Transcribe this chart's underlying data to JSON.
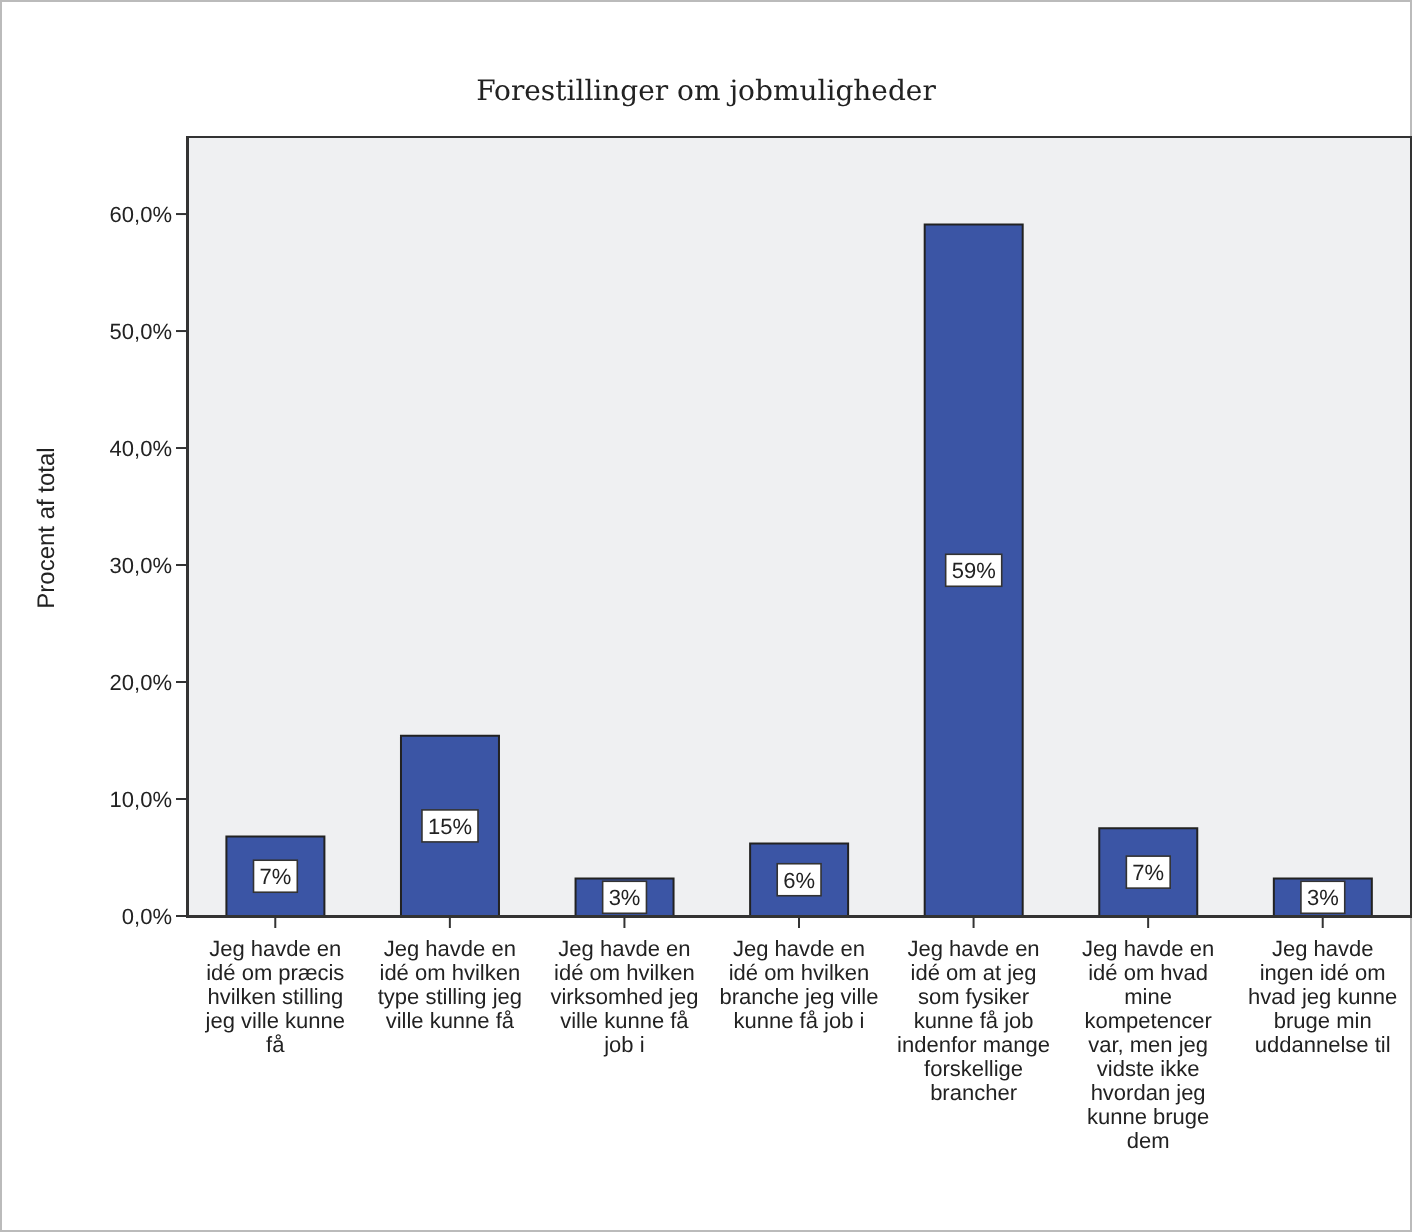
{
  "chart_data": {
    "type": "bar",
    "title": "Forestillinger om jobmuligheder",
    "ylabel": "Procent af total",
    "categories": [
      "Jeg havde en idé om præcis hvilken stilling jeg ville kunne få",
      "Jeg havde en idé om hvilken type stilling jeg ville kunne få",
      "Jeg havde en idé om hvilken virksomhed jeg ville kunne få job i",
      "Jeg havde en idé om hvilken branche jeg ville kunne få job i",
      "Jeg havde en idé om at jeg som fysiker kunne få job indenfor mange forskellige brancher",
      "Jeg havde en idé om hvad mine kompetencer var, men jeg vidste ikke hvordan jeg kunne bruge dem",
      "Jeg havde ingen idé om hvad jeg kunne bruge min uddannelse til"
    ],
    "values": [
      6.8,
      15.4,
      3.2,
      6.2,
      59.1,
      7.5,
      3.2
    ],
    "value_labels": [
      "7%",
      "15%",
      "3%",
      "6%",
      "59%",
      "7%",
      "3%"
    ],
    "color": "#3b55a5",
    "ylim": [
      0,
      66.5
    ],
    "yticks": [
      {
        "value": 0,
        "label": "0,0%"
      },
      {
        "value": 10,
        "label": "10,0%"
      },
      {
        "value": 20,
        "label": "20,0%"
      },
      {
        "value": 30,
        "label": "30,0%"
      },
      {
        "value": 40,
        "label": "40,0%"
      },
      {
        "value": 50,
        "label": "50,0%"
      },
      {
        "value": 60,
        "label": "60,0%"
      }
    ],
    "grid": false,
    "legend": false
  }
}
